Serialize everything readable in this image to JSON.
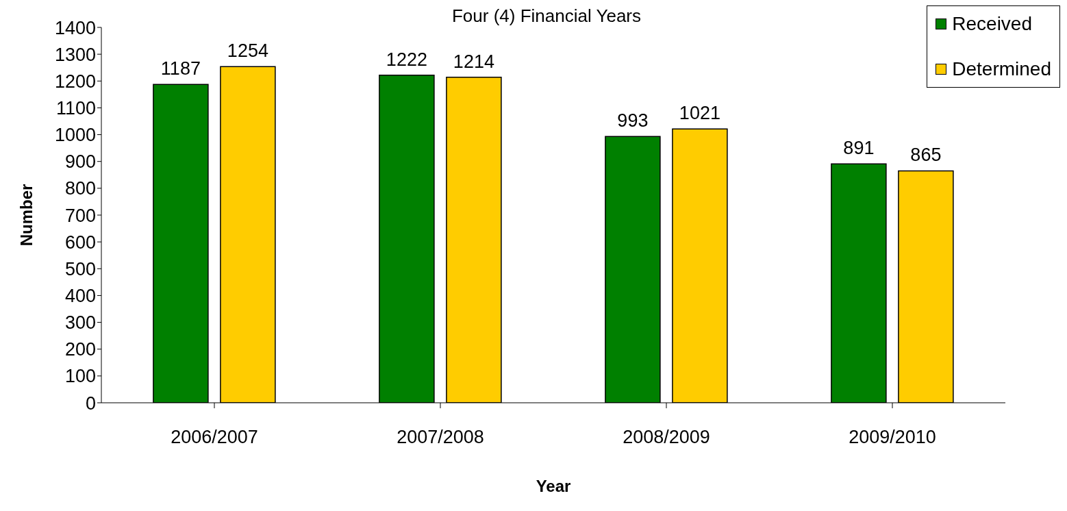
{
  "chart_data": {
    "type": "bar",
    "title": "Four (4) Financial Years",
    "xlabel": "Year",
    "ylabel": "Number",
    "categories": [
      "2006/2007",
      "2007/2008",
      "2008/2009",
      "2009/2010"
    ],
    "series": [
      {
        "name": "Received",
        "color": "#008000",
        "values": [
          1187,
          1222,
          993,
          891
        ]
      },
      {
        "name": "Determined",
        "color": "#ffcc00",
        "values": [
          1254,
          1214,
          1021,
          865
        ]
      }
    ],
    "ylim": [
      0,
      1400
    ],
    "yticks": [
      0,
      100,
      200,
      300,
      400,
      500,
      600,
      700,
      800,
      900,
      1000,
      1100,
      1200,
      1300,
      1400
    ],
    "grid": false,
    "legend": "top right",
    "data_labels": true
  }
}
